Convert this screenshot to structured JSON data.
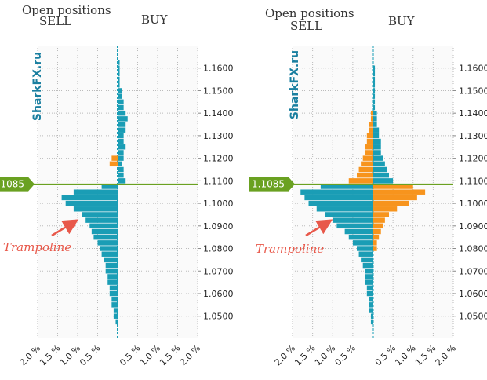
{
  "chart_data": [
    {
      "type": "bar",
      "orientation": "horizontal",
      "title": "Open positions",
      "left_label": "SELL",
      "right_label": "BUY",
      "watermark": "SharkFX.ru",
      "annotation": "Trampoline",
      "y": [
        1.0475,
        1.05,
        1.0525,
        1.055,
        1.0575,
        1.06,
        1.0625,
        1.065,
        1.0675,
        1.07,
        1.0725,
        1.075,
        1.0775,
        1.08,
        1.0825,
        1.085,
        1.0875,
        1.09,
        1.0925,
        1.095,
        1.0975,
        1.1,
        1.1025,
        1.105,
        1.1075,
        1.11,
        1.1125,
        1.115,
        1.1175,
        1.12,
        1.1225,
        1.125,
        1.1275,
        1.13,
        1.1325,
        1.135,
        1.1375,
        1.14,
        1.1425,
        1.145,
        1.1475,
        1.15,
        1.1525,
        1.155,
        1.1575,
        1.16,
        1.1625
      ],
      "series": [
        {
          "color": "#1a9db5",
          "side": "left",
          "values": [
            0.05,
            0.1,
            0.1,
            0.15,
            0.15,
            0.2,
            0.2,
            0.25,
            0.25,
            0.3,
            0.3,
            0.35,
            0.4,
            0.45,
            0.5,
            0.6,
            0.65,
            0.7,
            0.8,
            0.9,
            1.1,
            1.3,
            1.4,
            1.1,
            0.4,
            null,
            null,
            null,
            null,
            null,
            null,
            null,
            null,
            null,
            null,
            null,
            null,
            null,
            null,
            null,
            null,
            null,
            null,
            null,
            null,
            null,
            null
          ]
        },
        {
          "color": "#1a9db5",
          "side": "right",
          "values": [
            null,
            null,
            null,
            null,
            null,
            null,
            null,
            null,
            null,
            null,
            null,
            null,
            null,
            null,
            null,
            null,
            null,
            null,
            null,
            null,
            null,
            null,
            null,
            null,
            null,
            0.2,
            0.15,
            0.15,
            0.1,
            0.15,
            0.15,
            0.2,
            0.15,
            0.15,
            0.2,
            0.2,
            0.25,
            0.2,
            0.15,
            0.15,
            0.1,
            0.1,
            0.05,
            0.05,
            0.05,
            0.05,
            0.05
          ]
        },
        {
          "color": "#f7941d",
          "side": "left",
          "values": [
            null,
            null,
            null,
            null,
            null,
            null,
            null,
            null,
            null,
            null,
            null,
            null,
            null,
            null,
            null,
            null,
            null,
            null,
            null,
            null,
            null,
            null,
            null,
            null,
            null,
            null,
            null,
            null,
            0.2,
            0.15,
            null,
            null,
            null,
            null,
            null,
            null,
            null,
            null,
            null,
            null,
            null,
            null,
            null,
            null,
            null,
            null,
            null
          ]
        }
      ],
      "xlim": [
        -2,
        2
      ],
      "ylim": [
        1.0405,
        1.17
      ],
      "xticks": [
        {
          "value": -2,
          "label": "2.0 %"
        },
        {
          "value": -1.5,
          "label": "1.5 %"
        },
        {
          "value": -1,
          "label": "1.0 %"
        },
        {
          "value": -0.5,
          "label": "0.5 %"
        },
        {
          "value": 0.5,
          "label": "0.5 %"
        },
        {
          "value": 1,
          "label": "1.0 %"
        },
        {
          "value": 1.5,
          "label": "1.5 %"
        },
        {
          "value": 2,
          "label": "2.0 %"
        }
      ],
      "yticks": [
        {
          "value": 1.05,
          "label": "1.0500"
        },
        {
          "value": 1.06,
          "label": "1.0600"
        },
        {
          "value": 1.07,
          "label": "1.0700"
        },
        {
          "value": 1.08,
          "label": "1.0800"
        },
        {
          "value": 1.09,
          "label": "1.0900"
        },
        {
          "value": 1.1,
          "label": "1.1000"
        },
        {
          "value": 1.11,
          "label": "1.1100"
        },
        {
          "value": 1.12,
          "label": "1.1200"
        },
        {
          "value": 1.13,
          "label": "1.1300"
        },
        {
          "value": 1.14,
          "label": "1.1400"
        },
        {
          "value": 1.15,
          "label": "1.1500"
        },
        {
          "value": 1.16,
          "label": "1.1600"
        }
      ],
      "price_line": {
        "value": 1.1085,
        "label": "1.1085"
      },
      "grid": true
    },
    {
      "type": "bar",
      "orientation": "horizontal",
      "title": "Open positions",
      "left_label": "SELL",
      "right_label": "BUY",
      "watermark": "SharkFX.ru",
      "annotation": "Trampoline",
      "y": [
        1.0475,
        1.05,
        1.0525,
        1.055,
        1.0575,
        1.06,
        1.0625,
        1.065,
        1.0675,
        1.07,
        1.0725,
        1.075,
        1.0775,
        1.08,
        1.0825,
        1.085,
        1.0875,
        1.09,
        1.0925,
        1.095,
        1.0975,
        1.1,
        1.1025,
        1.105,
        1.1075,
        1.11,
        1.1125,
        1.115,
        1.1175,
        1.12,
        1.1225,
        1.125,
        1.1275,
        1.13,
        1.1325,
        1.135,
        1.1375,
        1.14,
        1.1425,
        1.145,
        1.1475,
        1.15,
        1.1525,
        1.155,
        1.1575,
        1.16,
        1.1625
      ],
      "series": [
        {
          "color": "#1a9db5",
          "side": "left",
          "values": [
            0.05,
            0.05,
            0.1,
            0.1,
            0.1,
            0.15,
            0.15,
            0.2,
            0.2,
            0.2,
            0.25,
            0.3,
            0.35,
            0.4,
            0.5,
            0.6,
            0.7,
            0.9,
            1.0,
            1.2,
            1.4,
            1.6,
            1.7,
            1.8,
            1.3,
            null,
            null,
            null,
            null,
            null,
            null,
            null,
            null,
            null,
            null,
            null,
            null,
            null,
            null,
            null,
            null,
            null,
            null,
            null,
            null,
            null,
            null
          ]
        },
        {
          "color": "#f7941d",
          "side": "left",
          "values": [
            null,
            null,
            null,
            null,
            null,
            null,
            null,
            null,
            null,
            null,
            null,
            null,
            null,
            null,
            null,
            null,
            null,
            null,
            null,
            null,
            null,
            null,
            null,
            null,
            null,
            0.6,
            0.4,
            0.35,
            0.3,
            0.25,
            0.2,
            0.2,
            0.15,
            0.15,
            0.1,
            0.1,
            0.05,
            0.05,
            null,
            null,
            null,
            null,
            null,
            null,
            null,
            null,
            null
          ]
        },
        {
          "color": "#f7941d",
          "side": "right",
          "values": [
            null,
            null,
            null,
            null,
            null,
            null,
            null,
            null,
            null,
            null,
            null,
            null,
            null,
            0.1,
            0.1,
            0.15,
            0.2,
            0.25,
            0.3,
            0.4,
            0.6,
            0.9,
            1.1,
            1.3,
            1.0,
            null,
            null,
            null,
            null,
            null,
            null,
            null,
            null,
            null,
            null,
            null,
            null,
            null,
            null,
            null,
            null,
            null,
            null,
            null,
            null,
            null,
            null
          ]
        },
        {
          "color": "#1a9db5",
          "side": "right",
          "values": [
            null,
            null,
            null,
            null,
            null,
            null,
            null,
            null,
            null,
            null,
            null,
            null,
            null,
            null,
            null,
            null,
            null,
            null,
            null,
            null,
            null,
            null,
            null,
            null,
            null,
            0.5,
            0.4,
            0.35,
            0.3,
            0.25,
            0.2,
            0.2,
            0.2,
            0.15,
            0.15,
            0.1,
            0.1,
            0.1,
            0.05,
            0.05,
            0.05,
            0.05,
            0.05,
            0.05,
            0.05,
            0.05,
            null
          ]
        }
      ],
      "xlim": [
        -2,
        2
      ],
      "ylim": [
        1.0405,
        1.17
      ],
      "xticks": [
        {
          "value": -2,
          "label": "2.0 %"
        },
        {
          "value": -1.5,
          "label": "1.5 %"
        },
        {
          "value": -1,
          "label": "1.0 %"
        },
        {
          "value": -0.5,
          "label": "0.5 %"
        },
        {
          "value": 0.5,
          "label": "0.5 %"
        },
        {
          "value": 1,
          "label": "1.0 %"
        },
        {
          "value": 1.5,
          "label": "1.5 %"
        },
        {
          "value": 2,
          "label": "2.0 %"
        }
      ],
      "yticks": [
        {
          "value": 1.05,
          "label": "1.0500"
        },
        {
          "value": 1.06,
          "label": "1.0600"
        },
        {
          "value": 1.07,
          "label": "1.0700"
        },
        {
          "value": 1.08,
          "label": "1.0800"
        },
        {
          "value": 1.09,
          "label": "1.0900"
        },
        {
          "value": 1.1,
          "label": "1.1000"
        },
        {
          "value": 1.11,
          "label": "1.1100"
        },
        {
          "value": 1.12,
          "label": "1.1200"
        },
        {
          "value": 1.13,
          "label": "1.1300"
        },
        {
          "value": 1.14,
          "label": "1.1400"
        },
        {
          "value": 1.15,
          "label": "1.1500"
        },
        {
          "value": 1.16,
          "label": "1.1600"
        }
      ],
      "price_line": {
        "value": 1.1085,
        "label": "1.1085"
      },
      "grid": true
    }
  ]
}
